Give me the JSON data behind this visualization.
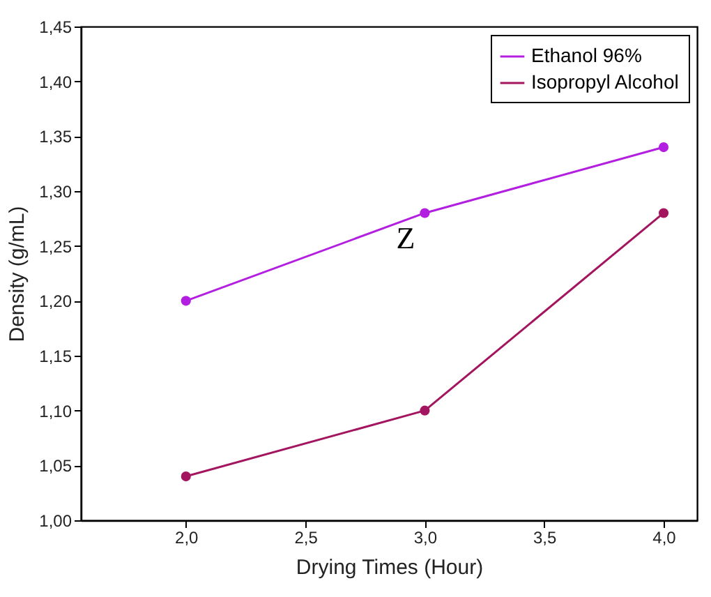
{
  "chart_data": {
    "type": "line",
    "xlabel": "Drying Times (Hour)",
    "ylabel": "Density (g/mL)",
    "x": [
      2,
      3,
      4
    ],
    "series": [
      {
        "name": "Ethanol 96%",
        "color": "#b21fe0",
        "values": [
          1.2,
          1.28,
          1.34
        ]
      },
      {
        "name": "Isopropyl Alcohol",
        "color": "#a3155e",
        "values": [
          1.04,
          1.1,
          1.28
        ]
      }
    ],
    "xlim": [
      1.56,
      4.14
    ],
    "ylim": [
      1.0,
      1.45
    ],
    "xticks": [
      {
        "value": 2,
        "label": "2,0"
      },
      {
        "value": 2.5,
        "label": "2,5"
      },
      {
        "value": 3,
        "label": "3,0"
      },
      {
        "value": 3.5,
        "label": "3,5"
      },
      {
        "value": 4,
        "label": "4,0"
      }
    ],
    "yticks": [
      {
        "value": 1.0,
        "label": "1,00"
      },
      {
        "value": 1.05,
        "label": "1,05"
      },
      {
        "value": 1.1,
        "label": "1,10"
      },
      {
        "value": 1.15,
        "label": "1,15"
      },
      {
        "value": 1.2,
        "label": "1,20"
      },
      {
        "value": 1.25,
        "label": "1,25"
      },
      {
        "value": 1.3,
        "label": "1,30"
      },
      {
        "value": 1.35,
        "label": "1,35"
      },
      {
        "value": 1.4,
        "label": "1,40"
      },
      {
        "value": 1.45,
        "label": "1,45"
      }
    ],
    "annotations": [
      "Z"
    ],
    "legend": "top right",
    "marker": "circle",
    "line_style": "solid",
    "grid": false
  }
}
